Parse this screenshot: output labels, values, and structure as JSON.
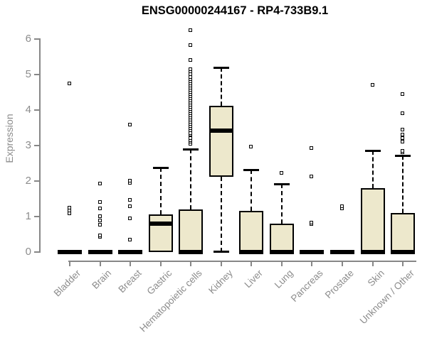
{
  "colors": {
    "axis": "#878787",
    "axis_text": "#8c8c8c",
    "title_text": "#000000",
    "box_fill": "#ede8cc",
    "box_border": "#000000",
    "median": "#000000",
    "whisker": "#000000",
    "outlier_fill": "#ffffff",
    "background": "#ffffff"
  },
  "chart_data": {
    "type": "boxplot",
    "title": "ENSG00000244167 - RP4-733B9.1",
    "xlabel": "",
    "ylabel": "Expression",
    "ylim": [
      0,
      6
    ],
    "yticks": [
      0,
      1,
      2,
      3,
      4,
      5,
      6
    ],
    "grid": false,
    "legend": false,
    "categories": [
      "Bladder",
      "Brain",
      "Breast",
      "Gastric",
      "Hematopoietic cells",
      "Kidney",
      "Liver",
      "Lung",
      "Pancreas",
      "Prostate",
      "Skin",
      "Unknown / Other"
    ],
    "series": [
      {
        "name": "Bladder",
        "q1": 0,
        "median": 0,
        "q3": 0,
        "whisker_low": 0,
        "whisker_high": 0,
        "outliers": [
          1.08,
          1.16,
          1.25,
          4.75
        ]
      },
      {
        "name": "Brain",
        "q1": 0,
        "median": 0,
        "q3": 0,
        "whisker_low": 0,
        "whisker_high": 0,
        "outliers": [
          0.42,
          0.46,
          0.76,
          0.88,
          1.0,
          1.22,
          1.4,
          1.93
        ]
      },
      {
        "name": "Breast",
        "q1": 0,
        "median": 0,
        "q3": 0,
        "whisker_low": 0,
        "whisker_high": 0,
        "outliers": [
          0.34,
          0.94,
          1.28,
          1.46,
          1.94,
          2.0,
          3.58
        ]
      },
      {
        "name": "Gastric",
        "q1": 0,
        "median": 0.8,
        "q3": 1.06,
        "whisker_low": 0,
        "whisker_high": 2.38,
        "outliers": []
      },
      {
        "name": "Hematopoietic cells",
        "q1": 0,
        "median": 0,
        "q3": 1.2,
        "whisker_low": 0,
        "whisker_high": 2.9,
        "outliers": [
          3.05,
          3.1,
          3.15,
          3.2,
          3.3,
          3.35,
          3.42,
          3.48,
          3.54,
          3.6,
          3.66,
          3.72,
          3.78,
          3.84,
          3.9,
          3.96,
          4.02,
          4.08,
          4.14,
          4.2,
          4.26,
          4.32,
          4.38,
          4.44,
          4.5,
          4.56,
          4.62,
          4.68,
          4.74,
          4.8,
          4.86,
          4.92,
          5.0,
          5.08,
          5.15,
          5.41,
          5.83,
          6.25
        ]
      },
      {
        "name": "Kidney",
        "q1": 2.13,
        "median": 3.43,
        "q3": 4.12,
        "whisker_low": 0,
        "whisker_high": 5.2,
        "outliers": []
      },
      {
        "name": "Liver",
        "q1": 0,
        "median": 0,
        "q3": 1.17,
        "whisker_low": 0,
        "whisker_high": 2.33,
        "outliers": [
          2.97
        ]
      },
      {
        "name": "Lung",
        "q1": 0,
        "median": 0,
        "q3": 0.8,
        "whisker_low": 0,
        "whisker_high": 1.92,
        "outliers": [
          2.22
        ]
      },
      {
        "name": "Pancreas",
        "q1": 0,
        "median": 0,
        "q3": 0,
        "whisker_low": 0,
        "whisker_high": 0,
        "outliers": [
          0.78,
          0.83,
          2.12,
          2.92
        ]
      },
      {
        "name": "Prostate",
        "q1": 0,
        "median": 0,
        "q3": 0,
        "whisker_low": 0,
        "whisker_high": 0,
        "outliers": [
          1.22,
          1.28
        ]
      },
      {
        "name": "Skin",
        "q1": 0,
        "median": 0,
        "q3": 1.8,
        "whisker_low": 0,
        "whisker_high": 2.87,
        "outliers": [
          4.7
        ]
      },
      {
        "name": "Unknown / Other",
        "q1": 0,
        "median": 0,
        "q3": 1.1,
        "whisker_low": 0,
        "whisker_high": 2.73,
        "outliers": [
          2.8,
          2.85,
          3.1,
          3.2,
          3.3,
          3.45,
          3.9,
          4.45
        ]
      }
    ]
  }
}
